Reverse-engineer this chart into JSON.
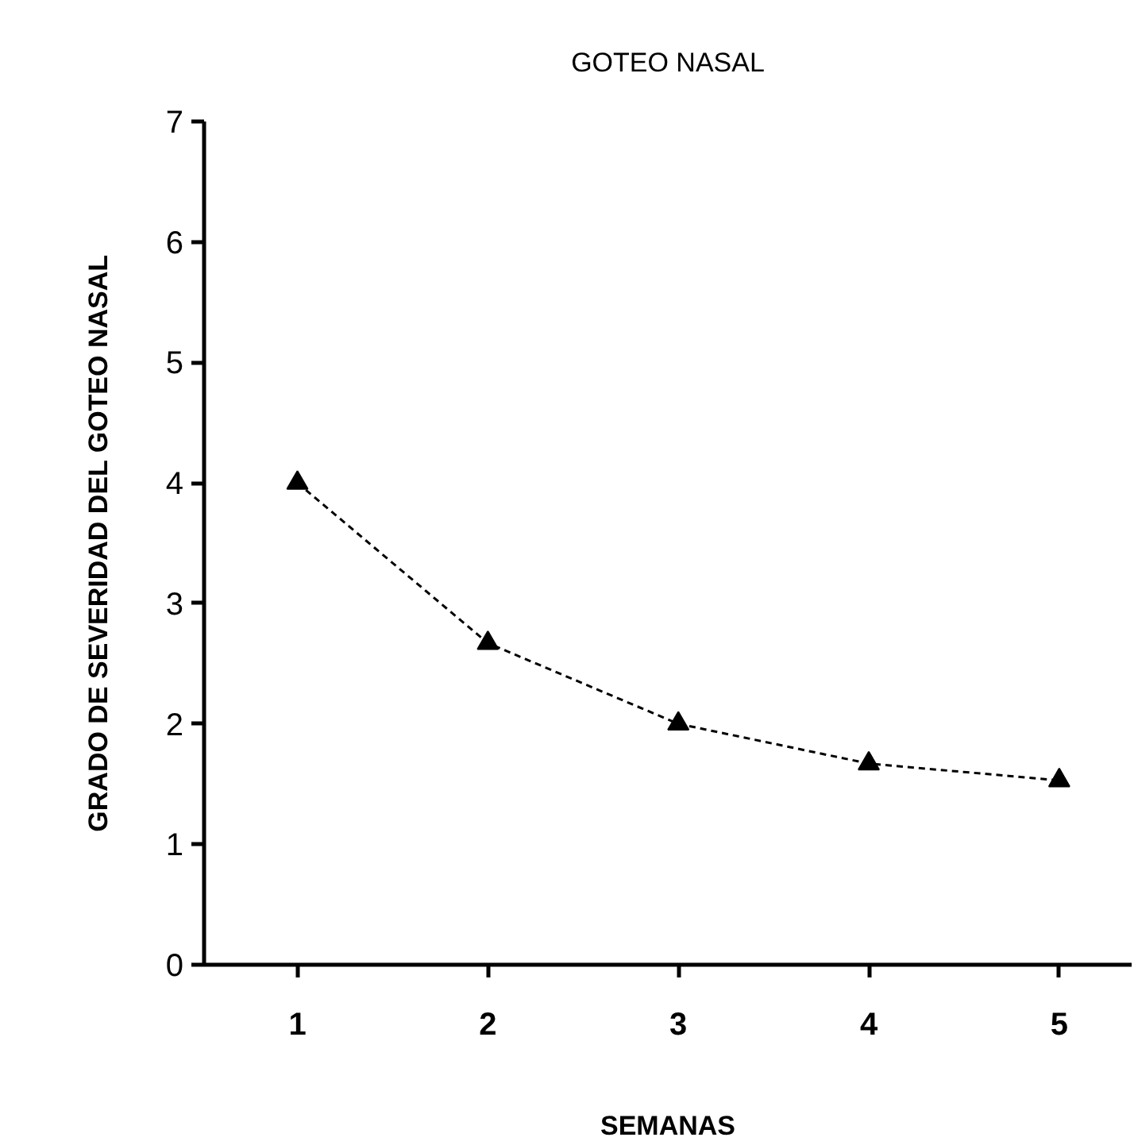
{
  "chart_data": {
    "type": "line",
    "title": "GOTEO NASAL",
    "xlabel": "SEMANAS",
    "ylabel": "GRADO DE SEVERIDAD DEL GOTEO NASAL",
    "categories": [
      "1",
      "2",
      "3",
      "4",
      "5"
    ],
    "series": [
      {
        "color": "#000000",
        "values": [
          4.0,
          2.67,
          2.0,
          1.67,
          1.53
        ]
      }
    ],
    "ylim": [
      0,
      7
    ],
    "yticks": [
      0,
      1,
      2,
      3,
      4,
      5,
      6,
      7
    ],
    "marker": "triangle",
    "line_style": "dashed",
    "grid": false
  }
}
